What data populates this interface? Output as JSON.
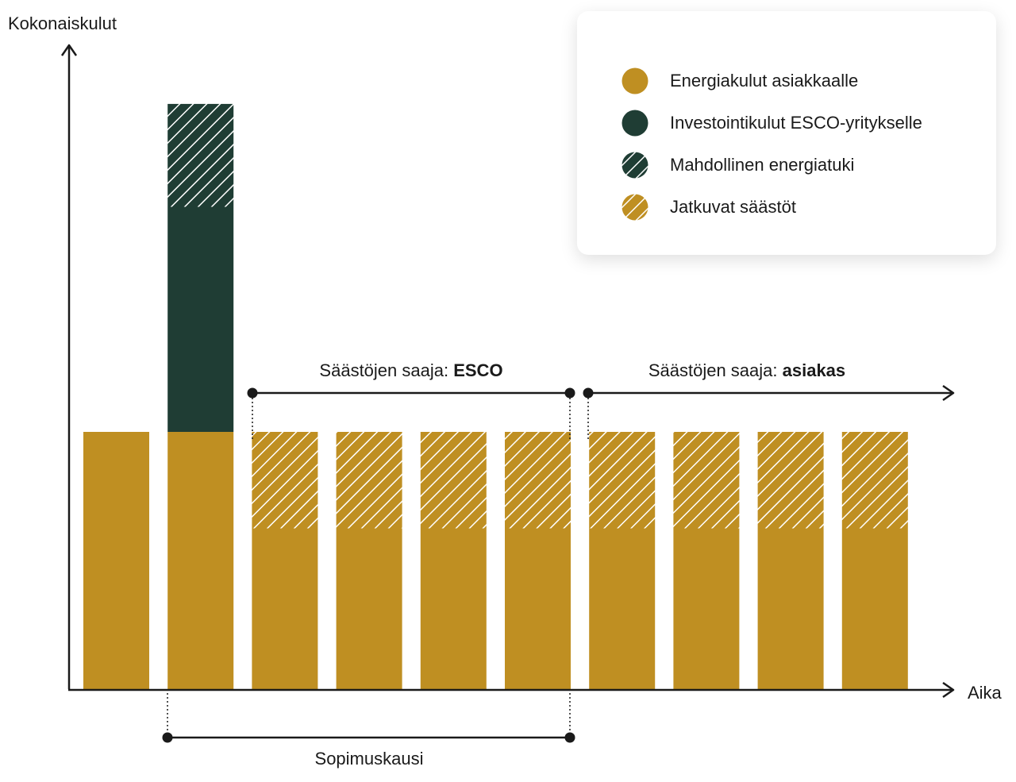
{
  "colors": {
    "energy": "#BF8F22",
    "investment": "#1F3D34",
    "axis": "#1a1a1a",
    "hatch_line": "#ffffff"
  },
  "legend": {
    "items": [
      {
        "label": "Energiakulut asiakkaalle",
        "swatch": "solid-gold-circle-icon"
      },
      {
        "label": "Investointikulut ESCO-yritykselle",
        "swatch": "solid-green-circle-icon"
      },
      {
        "label": "Mahdollinen energiatuki",
        "swatch": "hatched-green-circle-icon"
      },
      {
        "label": "Jatkuvat säästöt",
        "swatch": "hatched-gold-circle-icon"
      }
    ]
  },
  "chart_data": {
    "type": "bar",
    "stacked": true,
    "ylabel": "Kokonaiskulut",
    "xlabel": "Aika",
    "ylim": [
      0,
      100
    ],
    "categories": [
      "",
      "",
      "",
      "",
      "",
      "",
      "",
      "",
      "",
      ""
    ],
    "series": [
      {
        "name": "Energiakulut asiakkaalle",
        "style": "solid",
        "color": "#BF8F22",
        "values": [
          40,
          40,
          25,
          25,
          25,
          25,
          25,
          25,
          25,
          25
        ]
      },
      {
        "name": "Investointikulut ESCO-yritykselle",
        "style": "solid",
        "color": "#1F3D34",
        "values": [
          0,
          35,
          0,
          0,
          0,
          0,
          0,
          0,
          0,
          0
        ]
      },
      {
        "name": "Mahdollinen energiatuki",
        "style": "hatched",
        "color": "#1F3D34",
        "values": [
          0,
          16,
          0,
          0,
          0,
          0,
          0,
          0,
          0,
          0
        ]
      },
      {
        "name": "Jatkuvat säästöt",
        "style": "hatched",
        "color": "#BF8F22",
        "values": [
          0,
          0,
          15,
          15,
          15,
          15,
          15,
          15,
          15,
          15
        ]
      }
    ],
    "annotations": {
      "esco_period": {
        "prefix": "Säästöjen saaja: ",
        "bold": "ESCO",
        "from_bar": 2,
        "to_bar": 5
      },
      "customer_period": {
        "prefix": "Säästöjen saaja: ",
        "bold": "asiakas",
        "from_bar": 6,
        "arrow": true
      },
      "contract_period": {
        "label": "Sopimuskausi",
        "from_bar": 1,
        "to_bar": 5
      }
    },
    "grid": false,
    "legend_position": "top-right"
  }
}
